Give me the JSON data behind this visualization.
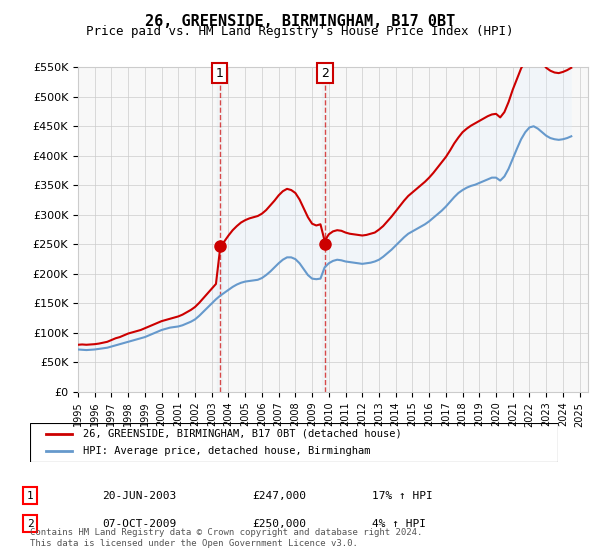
{
  "title": "26, GREENSIDE, BIRMINGHAM, B17 0BT",
  "subtitle": "Price paid vs. HM Land Registry's House Price Index (HPI)",
  "ylabel_ticks": [
    "£0",
    "£50K",
    "£100K",
    "£150K",
    "£200K",
    "£250K",
    "£300K",
    "£350K",
    "£400K",
    "£450K",
    "£500K",
    "£550K"
  ],
  "ylim": [
    0,
    550000
  ],
  "yticks": [
    0,
    50000,
    100000,
    150000,
    200000,
    250000,
    300000,
    350000,
    400000,
    450000,
    500000,
    550000
  ],
  "xlim_start": 1995.0,
  "xlim_end": 2025.5,
  "sale1_x": 2003.47,
  "sale1_y": 247000,
  "sale1_label": "1",
  "sale2_x": 2009.77,
  "sale2_y": 250000,
  "sale2_label": "2",
  "red_line_color": "#cc0000",
  "blue_line_color": "#6699cc",
  "fill_color": "#ddeeff",
  "vline_color": "#cc0000",
  "marker_box_color": "#cc0000",
  "grid_color": "#cccccc",
  "background_color": "#ffffff",
  "legend_line1": "26, GREENSIDE, BIRMINGHAM, B17 0BT (detached house)",
  "legend_line2": "HPI: Average price, detached house, Birmingham",
  "table_row1": [
    "1",
    "20-JUN-2003",
    "£247,000",
    "17% ↑ HPI"
  ],
  "table_row2": [
    "2",
    "07-OCT-2009",
    "£250,000",
    "4% ↑ HPI"
  ],
  "footnote": "Contains HM Land Registry data © Crown copyright and database right 2024.\nThis data is licensed under the Open Government Licence v3.0.",
  "hpi_data_x": [
    1995.0,
    1995.25,
    1995.5,
    1995.75,
    1996.0,
    1996.25,
    1996.5,
    1996.75,
    1997.0,
    1997.25,
    1997.5,
    1997.75,
    1998.0,
    1998.25,
    1998.5,
    1998.75,
    1999.0,
    1999.25,
    1999.5,
    1999.75,
    2000.0,
    2000.25,
    2000.5,
    2000.75,
    2001.0,
    2001.25,
    2001.5,
    2001.75,
    2002.0,
    2002.25,
    2002.5,
    2002.75,
    2003.0,
    2003.25,
    2003.5,
    2003.75,
    2004.0,
    2004.25,
    2004.5,
    2004.75,
    2005.0,
    2005.25,
    2005.5,
    2005.75,
    2006.0,
    2006.25,
    2006.5,
    2006.75,
    2007.0,
    2007.25,
    2007.5,
    2007.75,
    2008.0,
    2008.25,
    2008.5,
    2008.75,
    2009.0,
    2009.25,
    2009.5,
    2009.75,
    2010.0,
    2010.25,
    2010.5,
    2010.75,
    2011.0,
    2011.25,
    2011.5,
    2011.75,
    2012.0,
    2012.25,
    2012.5,
    2012.75,
    2013.0,
    2013.25,
    2013.5,
    2013.75,
    2014.0,
    2014.25,
    2014.5,
    2014.75,
    2015.0,
    2015.25,
    2015.5,
    2015.75,
    2016.0,
    2016.25,
    2016.5,
    2016.75,
    2017.0,
    2017.25,
    2017.5,
    2017.75,
    2018.0,
    2018.25,
    2018.5,
    2018.75,
    2019.0,
    2019.25,
    2019.5,
    2019.75,
    2020.0,
    2020.25,
    2020.5,
    2020.75,
    2021.0,
    2021.25,
    2021.5,
    2021.75,
    2022.0,
    2022.25,
    2022.5,
    2022.75,
    2023.0,
    2023.25,
    2023.5,
    2023.75,
    2024.0,
    2024.25,
    2024.5
  ],
  "hpi_data_y": [
    72000,
    71500,
    71000,
    71500,
    72000,
    73000,
    74000,
    75000,
    77000,
    79000,
    81000,
    83000,
    85000,
    87000,
    89000,
    91000,
    93000,
    96000,
    99000,
    102000,
    105000,
    107000,
    109000,
    110000,
    111000,
    113000,
    116000,
    119000,
    123000,
    129000,
    136000,
    143000,
    150000,
    157000,
    163000,
    168000,
    173000,
    178000,
    182000,
    185000,
    187000,
    188000,
    189000,
    190000,
    193000,
    198000,
    204000,
    211000,
    218000,
    224000,
    228000,
    228000,
    225000,
    218000,
    208000,
    198000,
    192000,
    191000,
    192000,
    211000,
    218000,
    222000,
    224000,
    223000,
    221000,
    220000,
    219000,
    218000,
    217000,
    218000,
    219000,
    221000,
    224000,
    229000,
    235000,
    241000,
    248000,
    255000,
    262000,
    268000,
    272000,
    276000,
    280000,
    284000,
    289000,
    295000,
    301000,
    307000,
    314000,
    322000,
    330000,
    337000,
    342000,
    346000,
    349000,
    351000,
    354000,
    357000,
    360000,
    363000,
    363000,
    358000,
    365000,
    378000,
    395000,
    412000,
    428000,
    440000,
    448000,
    450000,
    446000,
    440000,
    434000,
    430000,
    428000,
    427000,
    428000,
    430000,
    433000
  ],
  "red_data_x": [
    1995.0,
    1995.25,
    1995.5,
    1995.75,
    1996.0,
    1996.25,
    1996.5,
    1996.75,
    1997.0,
    1997.25,
    1997.5,
    1997.75,
    1998.0,
    1998.25,
    1998.5,
    1998.75,
    1999.0,
    1999.25,
    1999.5,
    1999.75,
    2000.0,
    2000.25,
    2000.5,
    2000.75,
    2001.0,
    2001.25,
    2001.5,
    2001.75,
    2002.0,
    2002.25,
    2002.5,
    2002.75,
    2003.0,
    2003.25,
    2003.5,
    2003.75,
    2004.0,
    2004.25,
    2004.5,
    2004.75,
    2005.0,
    2005.25,
    2005.5,
    2005.75,
    2006.0,
    2006.25,
    2006.5,
    2006.75,
    2007.0,
    2007.25,
    2007.5,
    2007.75,
    2008.0,
    2008.25,
    2008.5,
    2008.75,
    2009.0,
    2009.25,
    2009.5,
    2009.75,
    2010.0,
    2010.25,
    2010.5,
    2010.75,
    2011.0,
    2011.25,
    2011.5,
    2011.75,
    2012.0,
    2012.25,
    2012.5,
    2012.75,
    2013.0,
    2013.25,
    2013.5,
    2013.75,
    2014.0,
    2014.25,
    2014.5,
    2014.75,
    2015.0,
    2015.25,
    2015.5,
    2015.75,
    2016.0,
    2016.25,
    2016.5,
    2016.75,
    2017.0,
    2017.25,
    2017.5,
    2017.75,
    2018.0,
    2018.25,
    2018.5,
    2018.75,
    2019.0,
    2019.25,
    2019.5,
    2019.75,
    2020.0,
    2020.25,
    2020.5,
    2020.75,
    2021.0,
    2021.25,
    2021.5,
    2021.75,
    2022.0,
    2022.25,
    2022.5,
    2022.75,
    2023.0,
    2023.25,
    2023.5,
    2023.75,
    2024.0,
    2024.25,
    2024.5
  ],
  "red_data_y": [
    80000,
    80500,
    80000,
    80500,
    81000,
    82000,
    83500,
    85000,
    88000,
    91000,
    93000,
    96000,
    99000,
    101000,
    103000,
    105000,
    108000,
    111000,
    114000,
    117000,
    120000,
    122000,
    124000,
    126000,
    128000,
    131000,
    135000,
    139000,
    144000,
    151000,
    159000,
    167000,
    175000,
    183000,
    243000,
    255000,
    265000,
    274000,
    281000,
    287000,
    291000,
    294000,
    296000,
    298000,
    302000,
    308000,
    316000,
    324000,
    333000,
    340000,
    344000,
    342000,
    337000,
    326000,
    311000,
    296000,
    285000,
    282000,
    284000,
    256000,
    267000,
    272000,
    274000,
    273000,
    270000,
    268000,
    267000,
    266000,
    265000,
    266000,
    268000,
    270000,
    275000,
    281000,
    289000,
    297000,
    306000,
    315000,
    324000,
    332000,
    338000,
    344000,
    350000,
    356000,
    363000,
    371000,
    380000,
    389000,
    398000,
    409000,
    421000,
    431000,
    440000,
    446000,
    451000,
    455000,
    459000,
    463000,
    467000,
    470000,
    471000,
    465000,
    474000,
    491000,
    512000,
    530000,
    548000,
    561000,
    570000,
    571000,
    566000,
    558000,
    549000,
    544000,
    541000,
    540000,
    542000,
    545000,
    549000
  ]
}
